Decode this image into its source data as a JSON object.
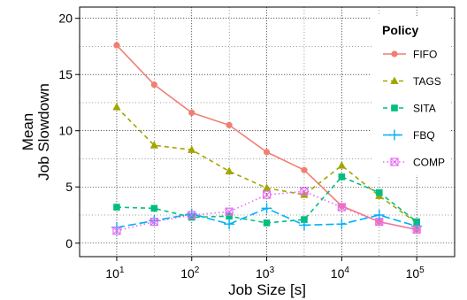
{
  "chart_data": {
    "type": "line",
    "xlabel": "Job Size [s]",
    "ylabel": [
      "Mean",
      "Job Slowdown"
    ],
    "x_scale": "log10",
    "xlim": [
      3.2,
      320000
    ],
    "ylim": [
      -1.2,
      21
    ],
    "y_ticks": [
      "0",
      "5",
      "10",
      "15",
      "20"
    ],
    "x_ticks": [
      {
        "base": "10",
        "exp": "1"
      },
      {
        "base": "10",
        "exp": "2"
      },
      {
        "base": "10",
        "exp": "3"
      },
      {
        "base": "10",
        "exp": "4"
      },
      {
        "base": "10",
        "exp": "5"
      }
    ],
    "x": [
      10,
      31.6,
      100,
      316,
      1000,
      3162,
      10000,
      31623,
      100000
    ],
    "legend_title": "Policy",
    "legend_position": "top-right",
    "grid": true,
    "series": [
      {
        "name": "FIFO",
        "color": "#f07f73",
        "marker": "circle",
        "dash": "solid",
        "values": [
          17.6,
          14.1,
          11.6,
          10.5,
          8.1,
          6.5,
          3.3,
          1.9,
          1.2
        ]
      },
      {
        "name": "TAGS",
        "color": "#a3a500",
        "marker": "triangle",
        "dash": "dashed",
        "values": [
          12.1,
          8.7,
          8.3,
          6.4,
          4.9,
          4.3,
          6.9,
          4.2,
          1.8
        ]
      },
      {
        "name": "SITA",
        "color": "#00bf7d",
        "marker": "square",
        "dash": "dashed",
        "values": [
          3.2,
          3.1,
          2.3,
          2.4,
          1.8,
          2.1,
          5.9,
          4.5,
          1.9
        ]
      },
      {
        "name": "FBQ",
        "color": "#00b0f6",
        "marker": "plus",
        "dash": "longdash",
        "values": [
          1.4,
          2.0,
          2.6,
          1.7,
          3.1,
          1.6,
          1.7,
          2.5,
          1.5
        ]
      },
      {
        "name": "COMP",
        "color": "#e76bf3",
        "marker": "boxx",
        "dash": "dotted",
        "values": [
          1.1,
          1.9,
          2.5,
          2.8,
          4.3,
          4.6,
          3.2,
          1.9,
          1.2
        ]
      }
    ]
  }
}
